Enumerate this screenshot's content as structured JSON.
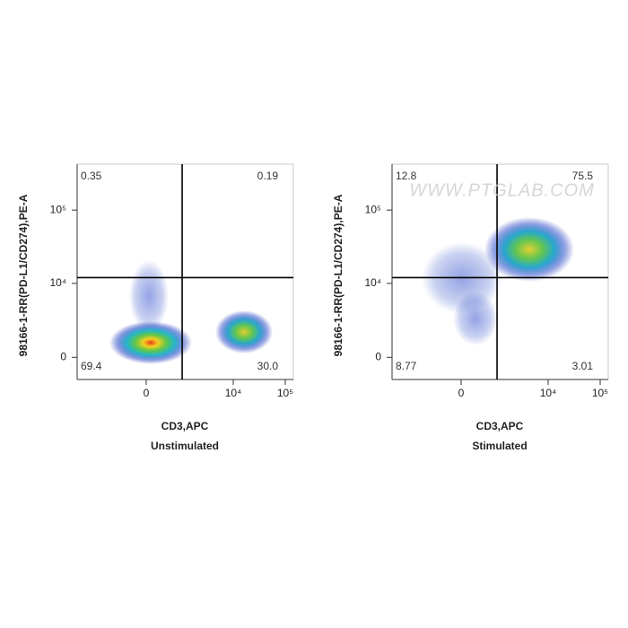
{
  "chart_data": [
    {
      "type": "flow-quadrant",
      "title": "Unstimulated",
      "xlabel": "CD3,APC",
      "ylabel": "98166-1-RR(PD-L1/CD274),PE-A",
      "scale": "biexponential",
      "xlim": [
        -4500,
        143000
      ],
      "xticks": [
        0,
        {
          "value": 10000,
          "label": "10⁴"
        },
        {
          "value": 100000,
          "label": "10⁵"
        }
      ],
      "ylim": [
        -1500,
        420000
      ],
      "yticks": [
        0,
        {
          "value": 10000,
          "label": "10⁴"
        },
        {
          "value": 100000,
          "label": "10⁵"
        }
      ],
      "gate": {
        "x": 1000,
        "y": 12000
      },
      "values": [
        0.35,
        0.19,
        69.4,
        30.0
      ],
      "value_labels": [
        "0.35",
        "0.19",
        "69.4",
        "30.0"
      ]
    },
    {
      "type": "flow-quadrant",
      "title": "Stimulated",
      "xlabel": "CD3,APC",
      "ylabel": "98166-1-RR(PD-L1/CD274),PE-A",
      "scale": "biexponential",
      "watermark": "WWW.PTGLAB.COM",
      "xlim": [
        -4500,
        143000
      ],
      "xticks": [
        0,
        {
          "value": 10000,
          "label": "10⁴"
        },
        {
          "value": 100000,
          "label": "10⁵"
        }
      ],
      "ylim": [
        -1500,
        420000
      ],
      "yticks": [
        0,
        {
          "value": 10000,
          "label": "10⁴"
        },
        {
          "value": 100000,
          "label": "10⁵"
        }
      ],
      "gate": {
        "x": 1000,
        "y": 12000
      },
      "values": [
        12.8,
        75.5,
        8.77,
        3.01
      ],
      "value_labels": [
        "12.8",
        "75.5",
        "8.77",
        "3.01"
      ]
    }
  ]
}
